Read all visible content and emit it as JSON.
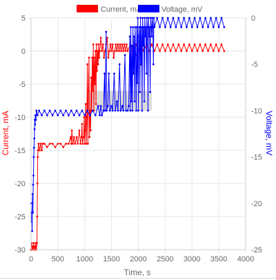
{
  "colors": {
    "current": "#ff0000",
    "voltage": "#0000ff",
    "grid": "#e6e6e6",
    "tick_text": "#666666",
    "shade": "#bdbdbd"
  },
  "chart_data": {
    "type": "line",
    "xlabel": "Time, s",
    "ylabel_left": "Current, mA",
    "ylabel_right": "Voltage, mV",
    "xlim": [
      0,
      4000
    ],
    "ylim_left": [
      -30,
      5
    ],
    "ylim_right": [
      -25,
      0
    ],
    "x_ticks": [
      "0",
      "500",
      "1000",
      "1500",
      "2000",
      "2500",
      "3000",
      "3500",
      "4000"
    ],
    "y_left_ticks": [
      "-30",
      "-25",
      "-20",
      "-15",
      "-10",
      "-5",
      "0",
      "5"
    ],
    "y_right_ticks": [
      "-25",
      "-20",
      "-15",
      "-10",
      "-5",
      "0"
    ],
    "grid": true,
    "legend_position": "top-center",
    "shaded_region": {
      "x": [
        1050,
        2250
      ],
      "y_left": [
        -9,
        -6
      ]
    },
    "series": [
      {
        "name": "Current, mA",
        "axis": "left",
        "color": "#ff0000",
        "points": [
          [
            0,
            -30
          ],
          [
            10,
            -29
          ],
          [
            20,
            -30
          ],
          [
            30,
            -29.5
          ],
          [
            40,
            -30
          ],
          [
            50,
            -29
          ],
          [
            60,
            -30
          ],
          [
            70,
            -29.5
          ],
          [
            80,
            -30
          ],
          [
            90,
            -29
          ],
          [
            100,
            -30
          ],
          [
            110,
            -29
          ],
          [
            115,
            -25
          ],
          [
            120,
            -20
          ],
          [
            125,
            -16
          ],
          [
            130,
            -15
          ],
          [
            140,
            -14
          ],
          [
            160,
            -15
          ],
          [
            180,
            -14
          ],
          [
            200,
            -15
          ],
          [
            220,
            -14
          ],
          [
            250,
            -14
          ],
          [
            300,
            -14.5
          ],
          [
            350,
            -14
          ],
          [
            400,
            -14
          ],
          [
            450,
            -14.5
          ],
          [
            500,
            -14
          ],
          [
            550,
            -14
          ],
          [
            600,
            -14.5
          ],
          [
            650,
            -14
          ],
          [
            700,
            -14
          ],
          [
            740,
            -13
          ],
          [
            750,
            -14
          ],
          [
            760,
            -12
          ],
          [
            780,
            -14
          ],
          [
            800,
            -13
          ],
          [
            820,
            -14
          ],
          [
            850,
            -13
          ],
          [
            870,
            -14
          ],
          [
            900,
            -12
          ],
          [
            920,
            -14
          ],
          [
            940,
            -13
          ],
          [
            950,
            -11
          ],
          [
            960,
            -14
          ],
          [
            980,
            -13
          ],
          [
            990,
            -10
          ],
          [
            1000,
            -14
          ],
          [
            1010,
            -12
          ],
          [
            1020,
            -8
          ],
          [
            1030,
            -14
          ],
          [
            1040,
            -10
          ],
          [
            1050,
            -2
          ],
          [
            1060,
            -14
          ],
          [
            1070,
            -6
          ],
          [
            1080,
            -1
          ],
          [
            1090,
            -13
          ],
          [
            1100,
            -9
          ],
          [
            1110,
            -12
          ],
          [
            1120,
            -4
          ],
          [
            1130,
            -9
          ],
          [
            1140,
            -1
          ],
          [
            1150,
            -6
          ],
          [
            1160,
            1
          ],
          [
            1170,
            -9
          ],
          [
            1180,
            -1
          ],
          [
            1190,
            -5
          ],
          [
            1200,
            0
          ],
          [
            1210,
            -8
          ],
          [
            1220,
            1
          ],
          [
            1230,
            -3
          ],
          [
            1240,
            0
          ],
          [
            1250,
            -2
          ],
          [
            1260,
            1
          ],
          [
            1270,
            -1
          ],
          [
            1280,
            0
          ],
          [
            1300,
            2
          ],
          [
            1320,
            0
          ],
          [
            1340,
            1
          ],
          [
            1360,
            -1
          ],
          [
            1380,
            0
          ],
          [
            1400,
            1
          ],
          [
            1420,
            2
          ],
          [
            1440,
            -1
          ],
          [
            1460,
            0
          ],
          [
            1480,
            1
          ],
          [
            1500,
            0
          ],
          [
            1520,
            1
          ],
          [
            1540,
            -1
          ],
          [
            1560,
            0
          ],
          [
            1580,
            1
          ],
          [
            1600,
            0
          ],
          [
            1620,
            1
          ],
          [
            1640,
            0
          ],
          [
            1660,
            1
          ],
          [
            1680,
            0
          ],
          [
            1700,
            1
          ],
          [
            1720,
            0
          ],
          [
            1740,
            1
          ],
          [
            1760,
            0
          ],
          [
            1780,
            1
          ],
          [
            1800,
            0
          ],
          [
            1850,
            1
          ],
          [
            1900,
            0
          ],
          [
            1950,
            1
          ],
          [
            2000,
            0
          ],
          [
            2050,
            1
          ],
          [
            2100,
            0
          ],
          [
            2150,
            1
          ],
          [
            2200,
            0
          ],
          [
            2250,
            1
          ],
          [
            2300,
            0
          ],
          [
            2350,
            1
          ],
          [
            2400,
            0
          ],
          [
            2450,
            1
          ],
          [
            2500,
            0
          ],
          [
            2550,
            1
          ],
          [
            2600,
            0
          ],
          [
            2650,
            1
          ],
          [
            2700,
            0
          ],
          [
            2750,
            1
          ],
          [
            2800,
            0
          ],
          [
            2850,
            1
          ],
          [
            2900,
            0
          ],
          [
            2950,
            1
          ],
          [
            3000,
            0
          ],
          [
            3050,
            1
          ],
          [
            3100,
            0
          ],
          [
            3150,
            1
          ],
          [
            3200,
            0
          ],
          [
            3250,
            1
          ],
          [
            3300,
            0
          ],
          [
            3350,
            1
          ],
          [
            3400,
            0
          ],
          [
            3450,
            1
          ],
          [
            3500,
            0
          ],
          [
            3550,
            1
          ],
          [
            3600,
            0
          ]
        ]
      },
      {
        "name": "Voltage, mV",
        "axis": "right",
        "color": "#0000ff",
        "points": [
          [
            0,
            -20
          ],
          [
            5,
            -21
          ],
          [
            10,
            -22
          ],
          [
            15,
            -21
          ],
          [
            20,
            -23
          ],
          [
            25,
            -20
          ],
          [
            30,
            -19
          ],
          [
            35,
            -21
          ],
          [
            40,
            -18
          ],
          [
            45,
            -17
          ],
          [
            50,
            -15
          ],
          [
            55,
            -14
          ],
          [
            60,
            -13
          ],
          [
            65,
            -12
          ],
          [
            70,
            -11
          ],
          [
            75,
            -11.5
          ],
          [
            80,
            -10.5
          ],
          [
            90,
            -11
          ],
          [
            100,
            -10
          ],
          [
            120,
            -10.5
          ],
          [
            150,
            -10
          ],
          [
            200,
            -10.5
          ],
          [
            250,
            -10
          ],
          [
            300,
            -10.5
          ],
          [
            350,
            -10
          ],
          [
            400,
            -10.5
          ],
          [
            450,
            -10
          ],
          [
            500,
            -10.5
          ],
          [
            550,
            -10
          ],
          [
            600,
            -10.5
          ],
          [
            650,
            -10
          ],
          [
            700,
            -10.5
          ],
          [
            750,
            -10
          ],
          [
            800,
            -10.5
          ],
          [
            850,
            -10
          ],
          [
            900,
            -10.5
          ],
          [
            950,
            -10
          ],
          [
            1000,
            -10.5
          ],
          [
            1050,
            -10
          ],
          [
            1100,
            -10.5
          ],
          [
            1150,
            -10
          ],
          [
            1200,
            -10.5
          ],
          [
            1250,
            -9.5
          ],
          [
            1280,
            -10.5
          ],
          [
            1300,
            -9.5
          ],
          [
            1320,
            -10.5
          ],
          [
            1350,
            -10
          ],
          [
            1370,
            -6
          ],
          [
            1380,
            -10
          ],
          [
            1400,
            -1.5
          ],
          [
            1410,
            -10
          ],
          [
            1430,
            -9.5
          ],
          [
            1450,
            -6
          ],
          [
            1470,
            -10
          ],
          [
            1500,
            -9.5
          ],
          [
            1520,
            -10
          ],
          [
            1550,
            -6
          ],
          [
            1570,
            -10
          ],
          [
            1600,
            -9
          ],
          [
            1620,
            -10
          ],
          [
            1650,
            -5
          ],
          [
            1670,
            -10
          ],
          [
            1700,
            -9.5
          ],
          [
            1720,
            -10
          ],
          [
            1750,
            -4
          ],
          [
            1770,
            -10
          ],
          [
            1800,
            -10
          ],
          [
            1820,
            -9.5
          ],
          [
            1840,
            -2
          ],
          [
            1850,
            -10
          ],
          [
            1860,
            -1
          ],
          [
            1870,
            -9
          ],
          [
            1880,
            -3
          ],
          [
            1890,
            -10
          ],
          [
            1900,
            -1
          ],
          [
            1910,
            -6
          ],
          [
            1920,
            -2
          ],
          [
            1930,
            -9
          ],
          [
            1940,
            -1
          ],
          [
            1950,
            -4
          ],
          [
            1960,
            -10
          ],
          [
            1970,
            -1
          ],
          [
            1980,
            -7
          ],
          [
            1990,
            0
          ],
          [
            2000,
            -10
          ],
          [
            2010,
            -2
          ],
          [
            2020,
            -1
          ],
          [
            2030,
            -8
          ],
          [
            2040,
            0
          ],
          [
            2050,
            -5
          ],
          [
            2060,
            -1
          ],
          [
            2070,
            -10
          ],
          [
            2080,
            0
          ],
          [
            2090,
            -3
          ],
          [
            2100,
            -1
          ],
          [
            2110,
            -9
          ],
          [
            2120,
            0
          ],
          [
            2130,
            -2
          ],
          [
            2140,
            -1
          ],
          [
            2150,
            -6
          ],
          [
            2160,
            0
          ],
          [
            2170,
            -1
          ],
          [
            2180,
            -10
          ],
          [
            2190,
            0
          ],
          [
            2200,
            -2
          ],
          [
            2210,
            -1
          ],
          [
            2220,
            -8
          ],
          [
            2230,
            0
          ],
          [
            2240,
            -1
          ],
          [
            2250,
            -2
          ],
          [
            2260,
            0
          ],
          [
            2270,
            -1
          ],
          [
            2280,
            -5
          ],
          [
            2290,
            0
          ],
          [
            2300,
            -1
          ],
          [
            2350,
            0
          ],
          [
            2400,
            -1
          ],
          [
            2450,
            0
          ],
          [
            2500,
            -1
          ],
          [
            2550,
            0
          ],
          [
            2600,
            -1
          ],
          [
            2650,
            0
          ],
          [
            2700,
            -1
          ],
          [
            2750,
            0
          ],
          [
            2800,
            -1
          ],
          [
            2850,
            0
          ],
          [
            2900,
            -1
          ],
          [
            2950,
            0
          ],
          [
            3000,
            -1
          ],
          [
            3050,
            0
          ],
          [
            3100,
            -1
          ],
          [
            3150,
            0
          ],
          [
            3200,
            -1
          ],
          [
            3250,
            0
          ],
          [
            3300,
            -1
          ],
          [
            3350,
            0
          ],
          [
            3400,
            -1
          ],
          [
            3450,
            0
          ],
          [
            3500,
            -1
          ],
          [
            3550,
            0
          ],
          [
            3600,
            -1
          ]
        ]
      }
    ]
  }
}
